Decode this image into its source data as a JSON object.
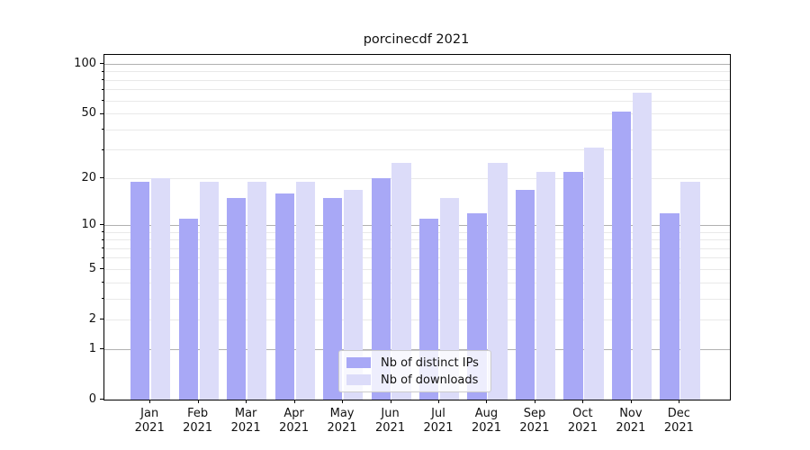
{
  "chart_data": {
    "type": "bar",
    "title": "porcinecdf 2021",
    "categories": [
      "Jan",
      "Feb",
      "Mar",
      "Apr",
      "May",
      "Jun",
      "Jul",
      "Aug",
      "Sep",
      "Oct",
      "Nov",
      "Dec"
    ],
    "year_label": "2021",
    "series": [
      {
        "name": "Nb of distinct IPs",
        "color": "#a8a8f6",
        "values": [
          19,
          11,
          15,
          16,
          15,
          20,
          11,
          12,
          17,
          22,
          52,
          12
        ]
      },
      {
        "name": "Nb of downloads",
        "color": "#dcdcf9",
        "values": [
          20,
          19,
          19,
          19,
          17,
          25,
          15,
          25,
          22,
          31,
          67,
          19
        ]
      }
    ],
    "xlabel": "",
    "ylabel": "",
    "yscale": "log1p",
    "ylim": [
      0,
      114
    ],
    "yticks": [
      0,
      1,
      2,
      5,
      10,
      20,
      50,
      100
    ],
    "yticks_minor": [
      3,
      4,
      6,
      7,
      8,
      9,
      30,
      40,
      60,
      70,
      80,
      90
    ],
    "decade_gridlines": [
      1,
      10,
      100
    ],
    "grid": true,
    "legend_position": "lower center"
  },
  "colors": {
    "grid_minor": "#e9e9e9",
    "grid_major": "#b0b0b0",
    "spine": "#000000",
    "text": "#111111",
    "legend_border": "#cccccc"
  }
}
